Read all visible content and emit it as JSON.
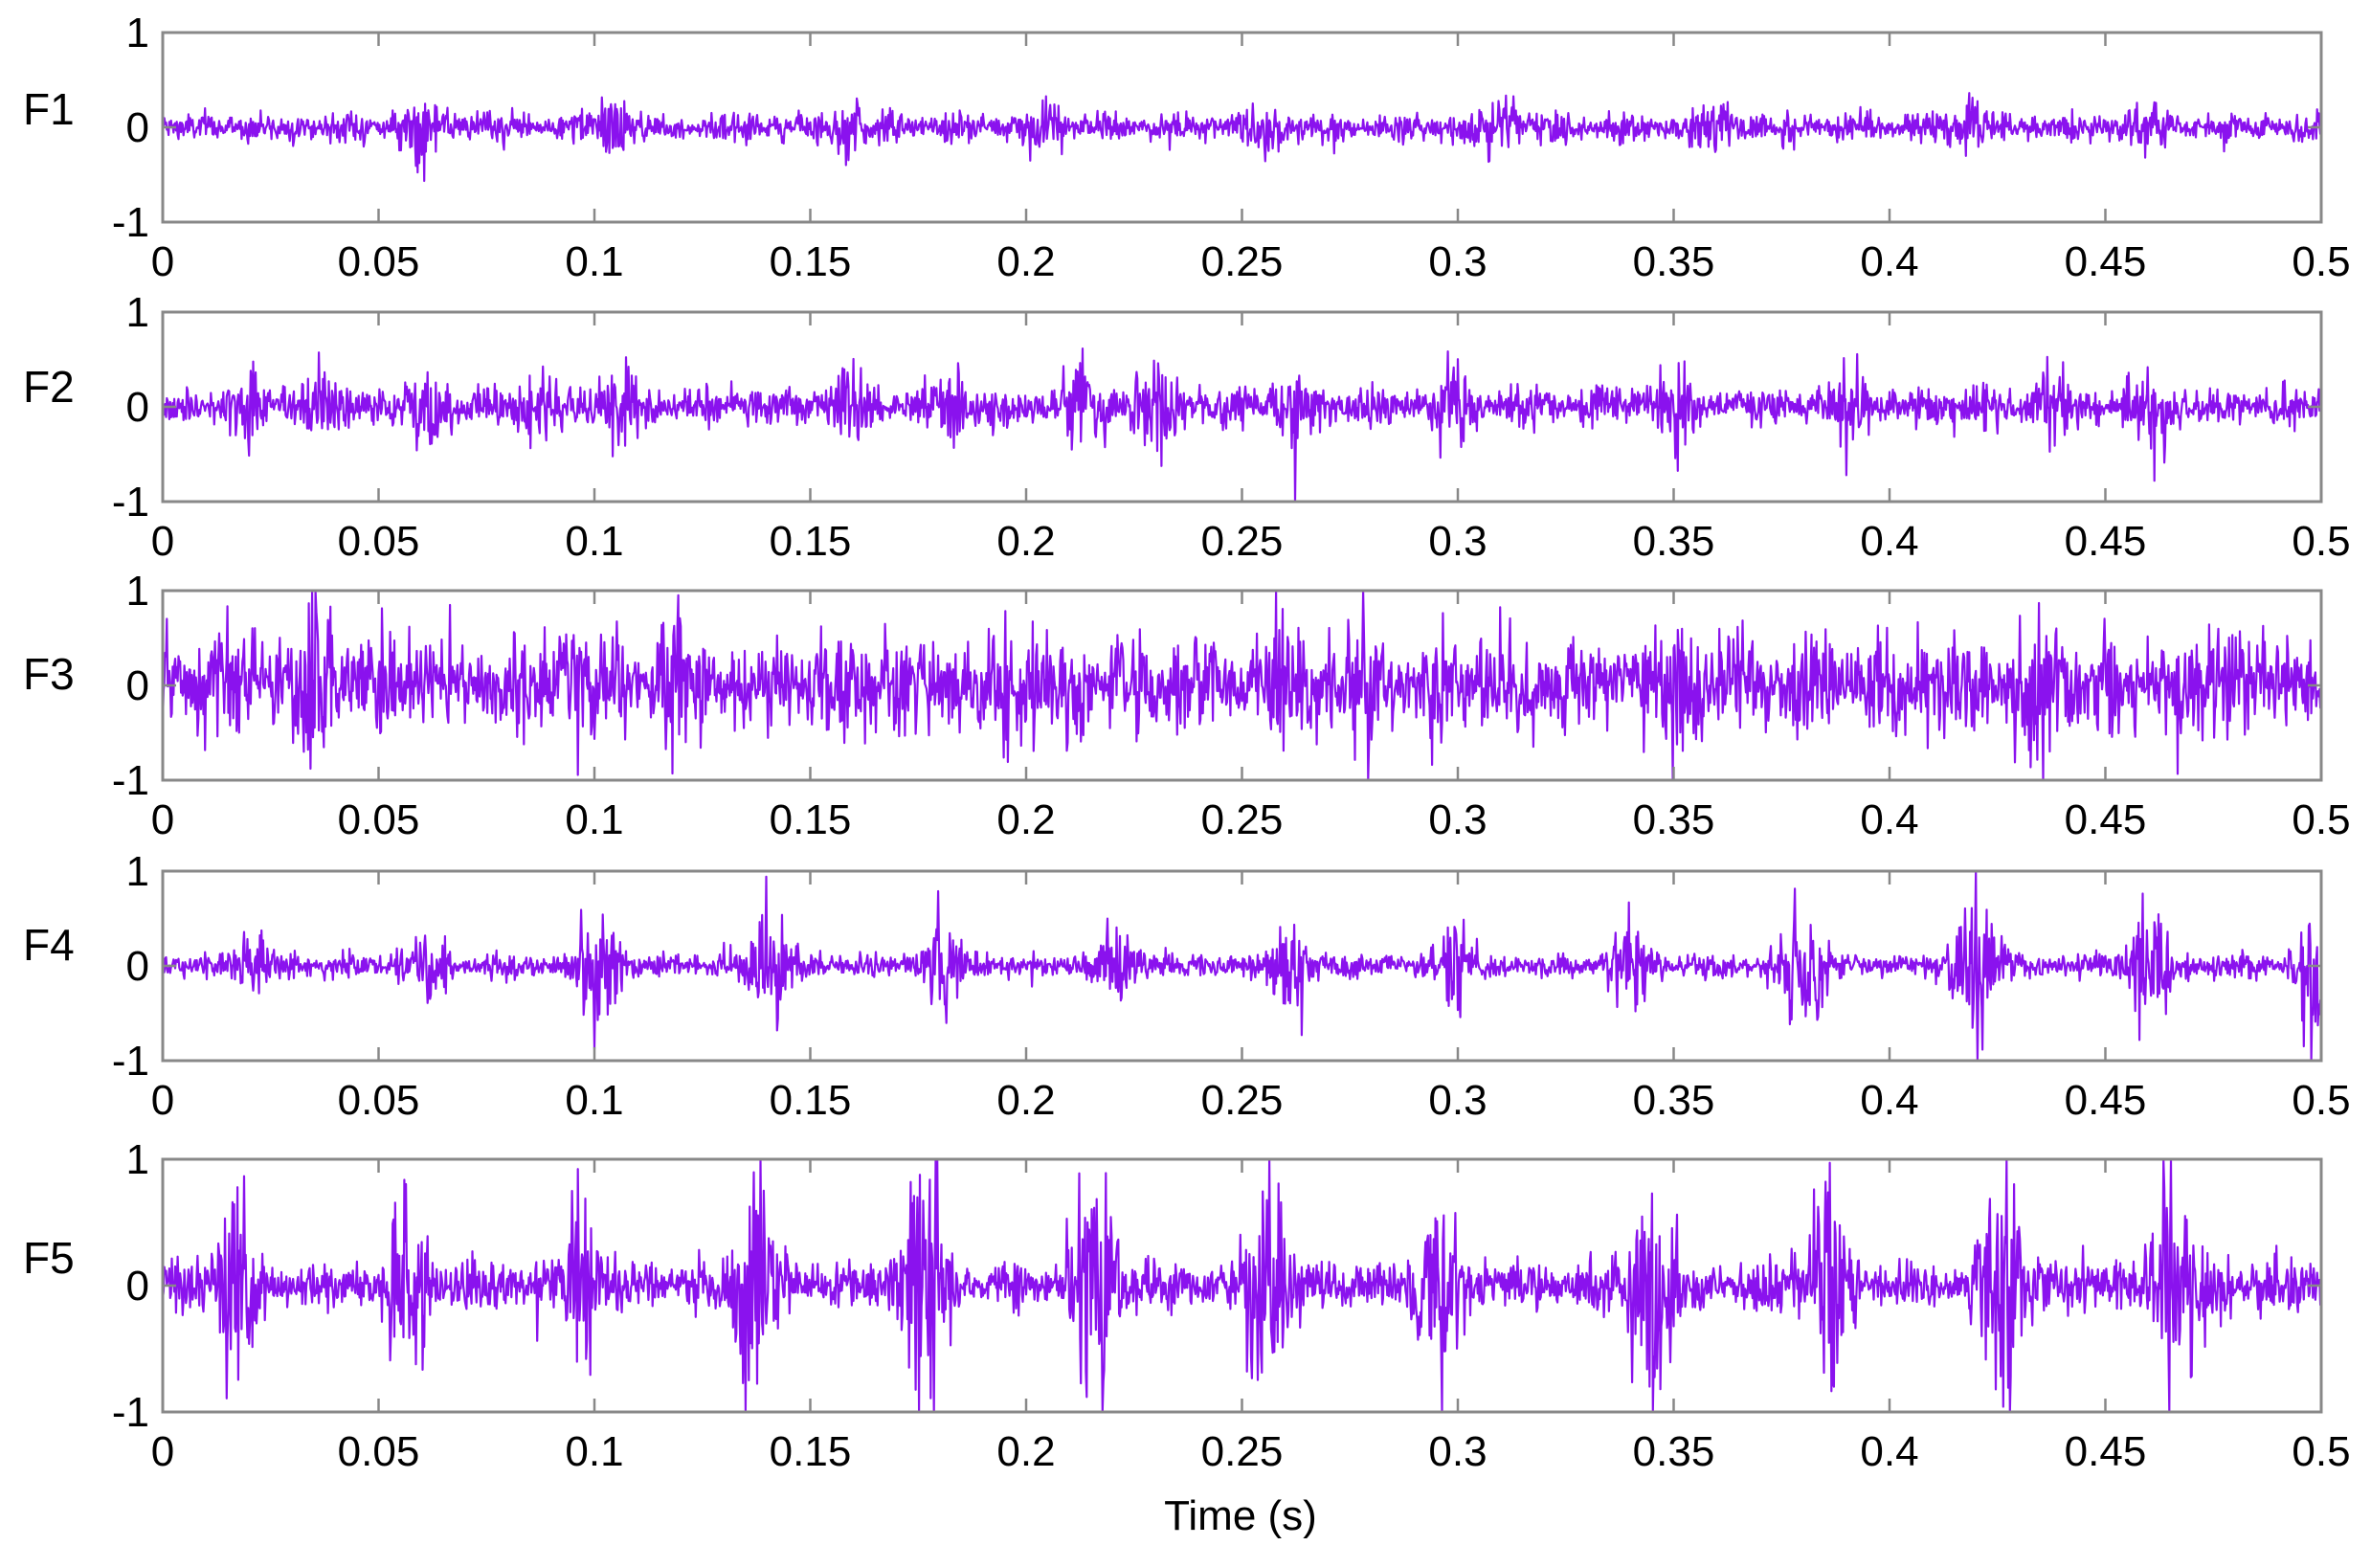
{
  "chart_data": {
    "type": "line",
    "xlabel": "Time (s)",
    "xlim": [
      0,
      0.5
    ],
    "x_ticks": [
      "0",
      "0.05",
      "0.1",
      "0.15",
      "0.2",
      "0.25",
      "0.3",
      "0.35",
      "0.4",
      "0.45",
      "0.5"
    ],
    "ylim": [
      -1,
      1
    ],
    "y_ticks": [
      "1",
      "0",
      "-1"
    ],
    "grid": false,
    "line_color": "#8a12ee",
    "panels": [
      {
        "name": "F1",
        "noise_amplitude": 0.12,
        "burst_times": [
          0.06,
          0.104,
          0.159,
          0.204,
          0.255,
          0.31,
          0.358,
          0.42,
          0.459
        ],
        "burst_amplitude": 0.18
      },
      {
        "name": "F2",
        "noise_amplitude": 0.16,
        "burst_times": [
          0.019,
          0.037,
          0.062,
          0.087,
          0.105,
          0.16,
          0.182,
          0.214,
          0.23,
          0.262,
          0.299,
          0.35,
          0.392,
          0.438,
          0.462
        ],
        "burst_amplitude": 0.25
      },
      {
        "name": "F3",
        "noise_amplitude": 0.42,
        "burst_times": [
          0.035,
          0.095,
          0.12,
          0.198,
          0.262,
          0.278,
          0.352,
          0.435,
          0.478
        ],
        "burst_amplitude": 0.35
      },
      {
        "name": "F4",
        "noise_amplitude": 0.1,
        "burst_times": [
          0.021,
          0.061,
          0.101,
          0.141,
          0.181,
          0.221,
          0.261,
          0.3,
          0.34,
          0.38,
          0.42,
          0.46,
          0.499
        ],
        "burst_amplitude": [
          0.3,
          0.3,
          0.55,
          0.55,
          0.4,
          0.4,
          0.4,
          0.4,
          0.4,
          0.7,
          0.7,
          0.75,
          0.75
        ]
      },
      {
        "name": "F5",
        "noise_amplitude": 0.16,
        "burst_times": [
          0.017,
          0.057,
          0.097,
          0.137,
          0.176,
          0.216,
          0.256,
          0.295,
          0.345,
          0.385,
          0.426,
          0.466
        ],
        "burst_amplitude": [
          0.6,
          0.55,
          0.6,
          0.9,
          1.05,
          0.9,
          0.85,
          0.6,
          0.8,
          0.7,
          0.85,
          0.8
        ]
      }
    ]
  }
}
